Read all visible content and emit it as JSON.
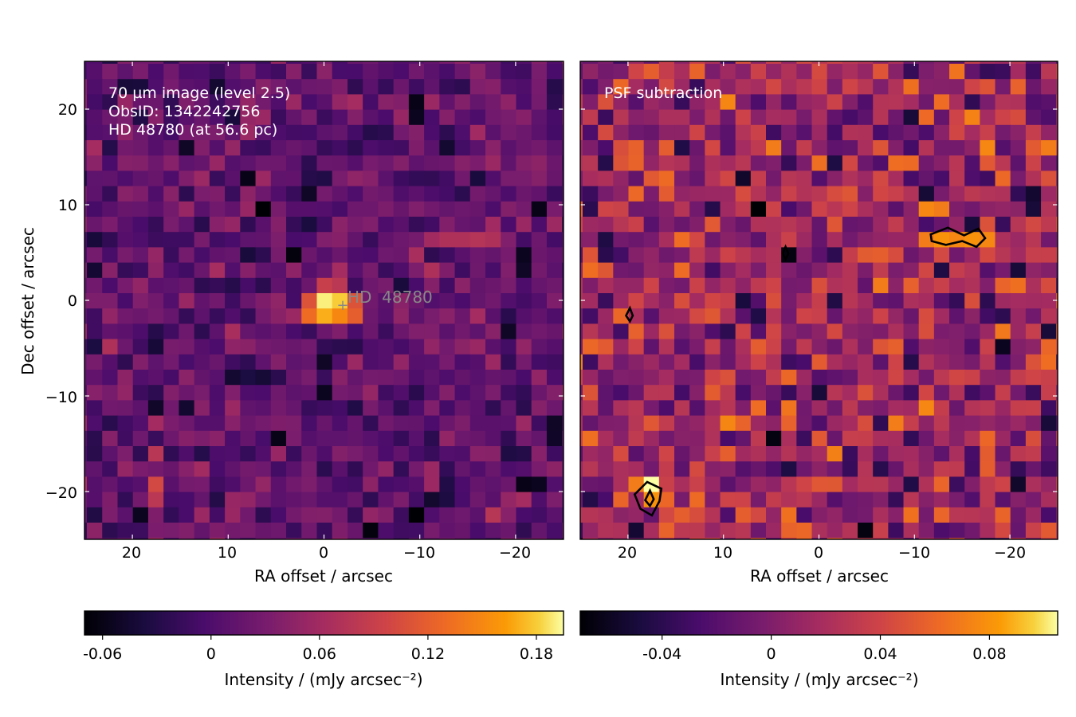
{
  "chart_data": [
    {
      "type": "heatmap",
      "panel": "left",
      "annotation_lines": [
        "70 µm image (level 2.5)",
        "ObsID: 1342242756",
        "HD 48780 (at 56.6 pc)"
      ],
      "marker_label": "HD  48780",
      "marker_position": [
        -2,
        -0.5
      ],
      "xlabel": "RA offset / arcsec",
      "ylabel": "Dec offset / arcsec",
      "xlim": [
        25,
        -25
      ],
      "ylim": [
        -25,
        25
      ],
      "xticks": [
        20,
        10,
        0,
        -10,
        -20
      ],
      "xtick_labels": [
        "20",
        "10",
        "0",
        "−10",
        "−20"
      ],
      "yticks": [
        20,
        10,
        0,
        -10,
        -20
      ],
      "ytick_labels": [
        "20",
        "10",
        "0",
        "−10",
        "−20"
      ],
      "grid": false,
      "pixel_size_arcsec": 1.6,
      "colormap": "inferno",
      "vmin": -0.07,
      "vmax": 0.195,
      "bright_pixels": [
        {
          "x": 0,
          "y": 0,
          "value": 0.19
        },
        {
          "x": -1.6,
          "y": 0,
          "value": 0.18
        },
        {
          "x": 0,
          "y": -1.6,
          "value": 0.17
        },
        {
          "x": -1.6,
          "y": -1.6,
          "value": 0.15
        },
        {
          "x": 1.6,
          "y": -1.6,
          "value": 0.13
        },
        {
          "x": -3.2,
          "y": -1.6,
          "value": 0.12
        },
        {
          "x": 1.6,
          "y": 0,
          "value": 0.11
        },
        {
          "x": -3.2,
          "y": 0,
          "value": 0.11
        },
        {
          "x": 0,
          "y": 1.6,
          "value": 0.09
        },
        {
          "x": -1.6,
          "y": 1.6,
          "value": 0.08
        },
        {
          "x": 17.6,
          "y": -19.2,
          "value": 0.1
        },
        {
          "x": 17.6,
          "y": -20.8,
          "value": 0.08
        },
        {
          "x": -12.8,
          "y": 6.4,
          "value": 0.07
        },
        {
          "x": -14.4,
          "y": 6.4,
          "value": 0.07
        },
        {
          "x": -16,
          "y": 6.4,
          "value": 0.075
        },
        {
          "x": -17.6,
          "y": 6.4,
          "value": 0.07
        },
        {
          "x": -11.2,
          "y": 6.4,
          "value": 0.06
        }
      ],
      "dark_pixels": [
        {
          "x": 6.4,
          "y": 9.6,
          "value": -0.07
        },
        {
          "x": 3.2,
          "y": 4.8,
          "value": -0.065
        },
        {
          "x": -9.6,
          "y": 20.8,
          "value": -0.06
        },
        {
          "x": -9.6,
          "y": 19.2,
          "value": -0.055
        },
        {
          "x": 8,
          "y": 12.8,
          "value": -0.06
        },
        {
          "x": -22.4,
          "y": 9.6,
          "value": -0.06
        },
        {
          "x": -20.8,
          "y": 4.8,
          "value": -0.055
        },
        {
          "x": -20.8,
          "y": 3.2,
          "value": -0.05
        },
        {
          "x": 4.8,
          "y": -14.4,
          "value": -0.06
        },
        {
          "x": -9.6,
          "y": -22.4,
          "value": -0.07
        },
        {
          "x": -4.8,
          "y": -24,
          "value": -0.065
        },
        {
          "x": -20.8,
          "y": -19.2,
          "value": -0.06
        },
        {
          "x": -22.4,
          "y": -19.2,
          "value": -0.055
        },
        {
          "x": 0,
          "y": -6.4,
          "value": -0.05
        },
        {
          "x": 0,
          "y": -9.6,
          "value": -0.055
        },
        {
          "x": 14.4,
          "y": 16,
          "value": -0.05
        },
        {
          "x": 1.6,
          "y": 11.2,
          "value": -0.05
        },
        {
          "x": -12.8,
          "y": 16,
          "value": -0.045
        },
        {
          "x": -19.2,
          "y": -3.2,
          "value": -0.05
        },
        {
          "x": 19.2,
          "y": -22.4,
          "value": -0.055
        },
        {
          "x": -24,
          "y": -12.8,
          "value": -0.05
        },
        {
          "x": 9.6,
          "y": -8,
          "value": -0.045
        },
        {
          "x": 11.2,
          "y": 22.4,
          "value": -0.045
        }
      ],
      "colorbar": {
        "label": "Intensity / (mJy arcsec⁻²)",
        "ticks": [
          -0.06,
          0,
          0.06,
          0.12,
          0.18
        ],
        "tick_labels": [
          "-0.06",
          "0",
          "0.06",
          "0.12",
          "0.18"
        ],
        "vmin": -0.07,
        "vmax": 0.195
      }
    },
    {
      "type": "heatmap",
      "panel": "right",
      "annotation_lines": [
        "PSF subtraction"
      ],
      "xlabel": "RA offset / arcsec",
      "ylabel": "",
      "xlim": [
        25,
        -25
      ],
      "ylim": [
        -25,
        25
      ],
      "xticks": [
        20,
        10,
        0,
        -10,
        -20
      ],
      "xtick_labels": [
        "20",
        "10",
        "0",
        "−10",
        "−20"
      ],
      "yticks": [
        20,
        10,
        0,
        -10,
        -20
      ],
      "ytick_labels": [],
      "grid": false,
      "pixel_size_arcsec": 1.6,
      "colormap": "inferno",
      "vmin": -0.07,
      "vmax": 0.105,
      "bright_pixels": [
        {
          "x": 17.6,
          "y": -19.2,
          "value": 0.105
        },
        {
          "x": 17.6,
          "y": -20.8,
          "value": 0.08
        },
        {
          "x": 19.2,
          "y": -19.2,
          "value": 0.07
        },
        {
          "x": -12.8,
          "y": 6.4,
          "value": 0.08
        },
        {
          "x": -14.4,
          "y": 6.4,
          "value": 0.075
        },
        {
          "x": -16,
          "y": 6.4,
          "value": 0.08
        },
        {
          "x": -17.6,
          "y": 6.4,
          "value": 0.075
        },
        {
          "x": -11.2,
          "y": 6.4,
          "value": 0.07
        },
        {
          "x": -11.2,
          "y": 9.6,
          "value": 0.075
        },
        {
          "x": -12.8,
          "y": 9.6,
          "value": 0.07
        },
        {
          "x": -17.6,
          "y": 16,
          "value": 0.075
        },
        {
          "x": -24,
          "y": 16,
          "value": 0.07
        },
        {
          "x": 4.8,
          "y": 16,
          "value": 0.07
        },
        {
          "x": 20.8,
          "y": 22.4,
          "value": 0.06
        },
        {
          "x": -6.4,
          "y": 1.6,
          "value": 0.07
        },
        {
          "x": -11.2,
          "y": -11.2,
          "value": 0.075
        },
        {
          "x": 24,
          "y": -4.8,
          "value": 0.06
        },
        {
          "x": -9.6,
          "y": -22.4,
          "value": 0.065
        },
        {
          "x": 3.2,
          "y": -22.4,
          "value": 0.065
        },
        {
          "x": 1.6,
          "y": -24,
          "value": 0.06
        },
        {
          "x": 20.8,
          "y": -1.6,
          "value": 0.06
        }
      ],
      "dark_pixels": [
        {
          "x": 6.4,
          "y": 9.6,
          "value": -0.07
        },
        {
          "x": 3.2,
          "y": 4.8,
          "value": -0.065
        },
        {
          "x": 8,
          "y": 12.8,
          "value": -0.055
        },
        {
          "x": -9.6,
          "y": 19.2,
          "value": -0.05
        },
        {
          "x": -22.4,
          "y": 9.6,
          "value": -0.05
        },
        {
          "x": -20.8,
          "y": 3.2,
          "value": -0.05
        },
        {
          "x": 4.8,
          "y": -14.4,
          "value": -0.065
        },
        {
          "x": -9.6,
          "y": -22.4,
          "value": -0.04
        },
        {
          "x": -4.8,
          "y": -24,
          "value": -0.065
        },
        {
          "x": -20.8,
          "y": -19.2,
          "value": -0.055
        },
        {
          "x": -19.2,
          "y": -4.8,
          "value": -0.06
        },
        {
          "x": -24,
          "y": -12.8,
          "value": -0.05
        },
        {
          "x": 0,
          "y": -9.6,
          "value": -0.05
        },
        {
          "x": -9.6,
          "y": -19.2,
          "value": -0.045
        },
        {
          "x": -24,
          "y": -3.2,
          "value": -0.05
        },
        {
          "x": 6.4,
          "y": -1.6,
          "value": -0.045
        },
        {
          "x": 14.4,
          "y": 16,
          "value": -0.045
        }
      ],
      "contours": [
        [
          [
            -11.7,
            6.9
          ],
          [
            -13.5,
            7.6
          ],
          [
            -15.2,
            6.8
          ],
          [
            -16.7,
            7.5
          ],
          [
            -17.4,
            6.5
          ],
          [
            -16.5,
            5.6
          ],
          [
            -15,
            6.2
          ],
          [
            -13.3,
            5.8
          ],
          [
            -11.8,
            6.2
          ],
          [
            -11.7,
            6.9
          ]
        ],
        [
          [
            18,
            -19
          ],
          [
            19.3,
            -20.3
          ],
          [
            18.7,
            -21.8
          ],
          [
            17.5,
            -22.5
          ],
          [
            16.7,
            -21
          ],
          [
            16.5,
            -19.7
          ],
          [
            18,
            -19
          ]
        ],
        [
          [
            17.7,
            -19.9
          ],
          [
            18.2,
            -20.9
          ],
          [
            17.7,
            -21.5
          ],
          [
            17.3,
            -20.8
          ],
          [
            17.7,
            -19.9
          ]
        ],
        [
          [
            19.8,
            -0.8
          ],
          [
            20.2,
            -1.6
          ],
          [
            19.8,
            -2.2
          ],
          [
            19.5,
            -1.6
          ],
          [
            19.8,
            -0.8
          ]
        ],
        [
          [
            3.5,
            5.6
          ],
          [
            3.8,
            4.9
          ],
          [
            3.5,
            4.3
          ],
          [
            3.2,
            4.9
          ],
          [
            3.5,
            5.6
          ]
        ]
      ],
      "colorbar": {
        "label": "Intensity / (mJy arcsec⁻²)",
        "ticks": [
          -0.04,
          0,
          0.04,
          0.08
        ],
        "tick_labels": [
          "-0.04",
          "0",
          "0.04",
          "0.08"
        ],
        "vmin": -0.07,
        "vmax": 0.105
      }
    }
  ]
}
